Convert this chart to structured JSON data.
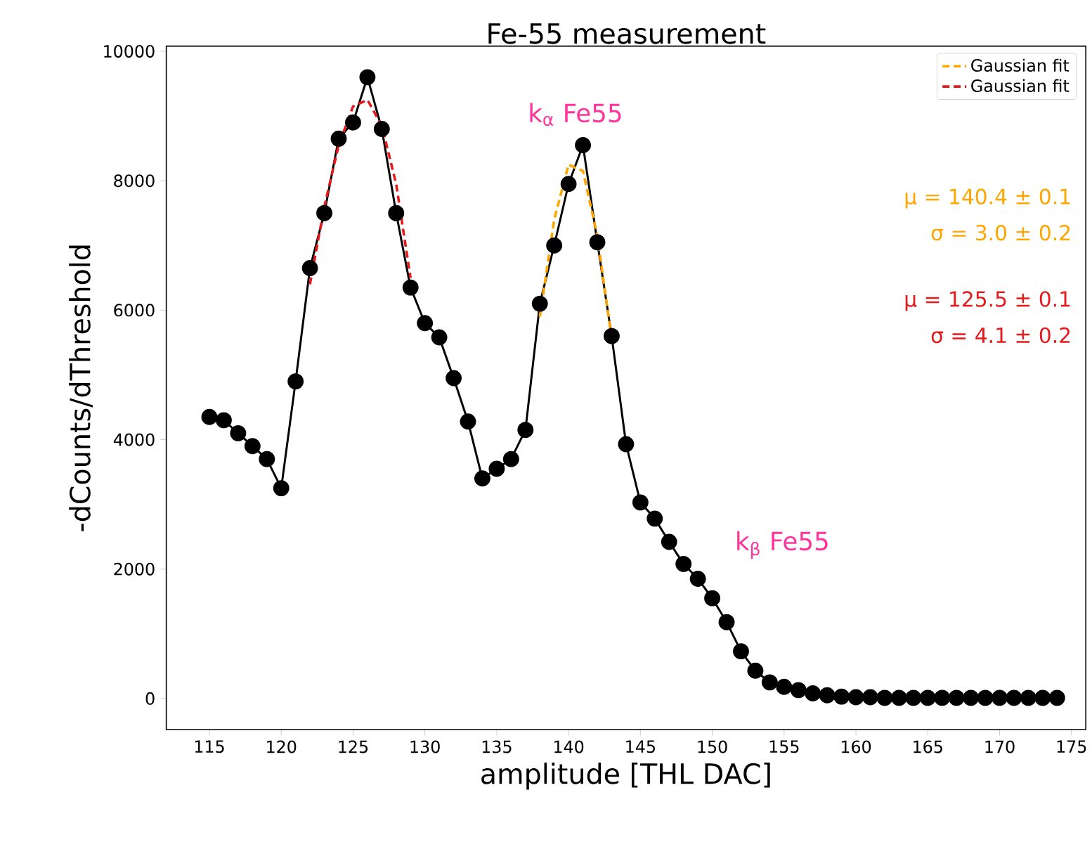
{
  "chart_data": {
    "type": "line",
    "title": "Fe-55 measurement",
    "xlabel": "amplitude [THL DAC]",
    "ylabel": "-dCounts/dThreshold",
    "xlim": [
      112,
      176
    ],
    "ylim": [
      -480,
      10080
    ],
    "xticks": [
      115,
      120,
      125,
      130,
      135,
      140,
      145,
      150,
      155,
      160,
      165,
      170,
      175
    ],
    "yticks": [
      0,
      2000,
      4000,
      6000,
      8000,
      10000
    ],
    "grid": false,
    "legend": "top right",
    "marker": "circle",
    "line_style": "solid",
    "series": [
      {
        "color": "#000000",
        "x": [
          115,
          116,
          117,
          118,
          119,
          120,
          121,
          122,
          123,
          124,
          125,
          126,
          127,
          128,
          129,
          130,
          131,
          132,
          133,
          134,
          135,
          136,
          137,
          138,
          139,
          140,
          141,
          142,
          143,
          144,
          145,
          146,
          147,
          148,
          149,
          150,
          151,
          152,
          153,
          154,
          155,
          156,
          157,
          158,
          159,
          160,
          161,
          162,
          163,
          164,
          165,
          166,
          167,
          168,
          169,
          170,
          171,
          172,
          173,
          174
        ],
        "values": [
          4350,
          4300,
          4100,
          3900,
          3700,
          3250,
          4900,
          6650,
          7500,
          8650,
          8900,
          9600,
          8800,
          7500,
          6350,
          5800,
          5580,
          4950,
          4280,
          3400,
          3550,
          3700,
          4150,
          6100,
          7000,
          7950,
          8550,
          7050,
          5600,
          3930,
          3030,
          2780,
          2420,
          2080,
          1850,
          1550,
          1180,
          730,
          430,
          250,
          180,
          130,
          80,
          50,
          30,
          20,
          20,
          10,
          10,
          10,
          10,
          10,
          10,
          10,
          10,
          10,
          10,
          10,
          10,
          10
        ]
      },
      {
        "name": "Gaussian fit",
        "color": "#ffa500",
        "type": "line",
        "marker": "none",
        "line_style": "dashed",
        "x": [
          138,
          139,
          140,
          141,
          142,
          143
        ],
        "values": [
          5900,
          7400,
          8250,
          8150,
          7150,
          5550
        ]
      },
      {
        "name": "Gaussian fit",
        "color": "#e41a1c",
        "type": "line",
        "marker": "none",
        "line_style": "dashed",
        "x": [
          122,
          123,
          124,
          125,
          126,
          127,
          128,
          129
        ],
        "values": [
          6400,
          7600,
          8550,
          9150,
          9250,
          8850,
          7950,
          6500
        ]
      }
    ],
    "annotations": [
      "k$_{α}$ Fe55",
      "k$_{β}$ Fe55",
      "μ = 140.4 ± 0.1",
      "σ = 3.0 ± 0.2",
      "μ = 125.5 ± 0.1",
      "σ = 4.1 ± 0.2"
    ]
  }
}
